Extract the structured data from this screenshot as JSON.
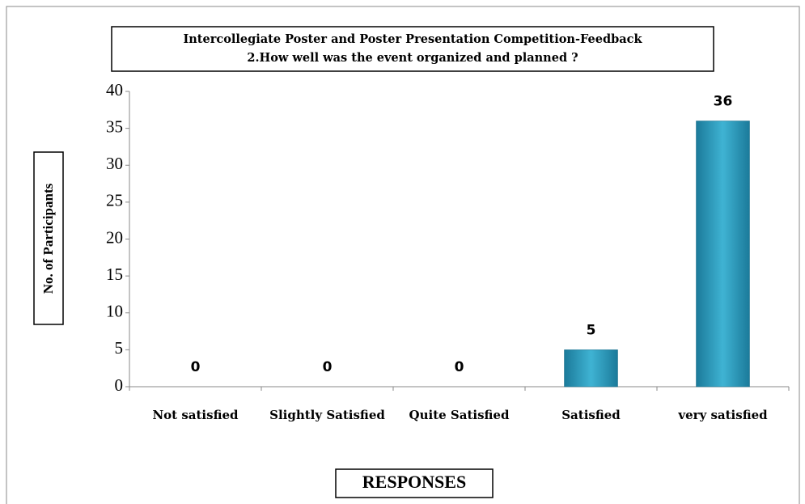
{
  "chart_data": {
    "type": "bar",
    "title": "Intercollegiate Poster and Poster Presentation Competition-Feedback",
    "subtitle": "2.How well was the event organized and planned ?",
    "x_label": "RESPONSES",
    "y_label": "No. of Participants",
    "categories": [
      "Not satisfied",
      "Slightly Satisfied",
      "Quite Satisfied",
      "Satisfied",
      "very satisfied"
    ],
    "values": [
      0,
      0,
      0,
      5,
      36
    ],
    "color": "#2a9bbd",
    "ylim": [
      0,
      40
    ],
    "yticks": [
      0,
      5,
      10,
      15,
      20,
      25,
      30,
      35,
      40
    ],
    "grid": false
  }
}
